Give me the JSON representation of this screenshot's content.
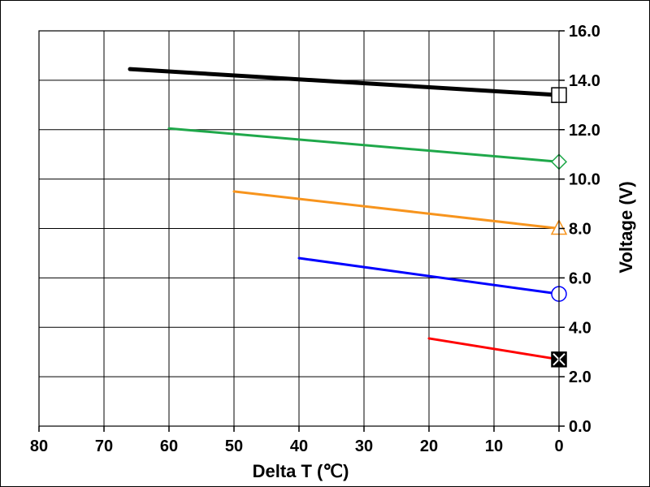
{
  "chart_data": {
    "type": "line",
    "title": "",
    "xlabel": "Delta T (℃)",
    "ylabel": "Voltage (V)",
    "xlim": [
      80,
      0
    ],
    "ylim": [
      0,
      16
    ],
    "x_ticks": [
      "80",
      "70",
      "60",
      "50",
      "40",
      "30",
      "20",
      "10",
      "0"
    ],
    "y_ticks": [
      "0.0",
      "2.0",
      "4.0",
      "6.0",
      "8.0",
      "10.0",
      "12.0",
      "14.0",
      "16.0"
    ],
    "grid": true,
    "legend": "none",
    "series": [
      {
        "color": "#000000",
        "marker": "square",
        "x": [
          66,
          0
        ],
        "y": [
          14.45,
          13.4
        ]
      },
      {
        "color": "#1fa84a",
        "marker": "diamond",
        "x": [
          60,
          0
        ],
        "y": [
          12.05,
          10.7
        ]
      },
      {
        "color": "#f7941d",
        "marker": "triangle",
        "x": [
          50,
          0
        ],
        "y": [
          9.5,
          8.0
        ]
      },
      {
        "color": "#0000ff",
        "marker": "circle",
        "x": [
          40,
          0
        ],
        "y": [
          6.8,
          5.35
        ]
      },
      {
        "color": "#ff0000",
        "marker": "x-box",
        "x": [
          20,
          0
        ],
        "y": [
          3.55,
          2.7
        ]
      }
    ]
  }
}
